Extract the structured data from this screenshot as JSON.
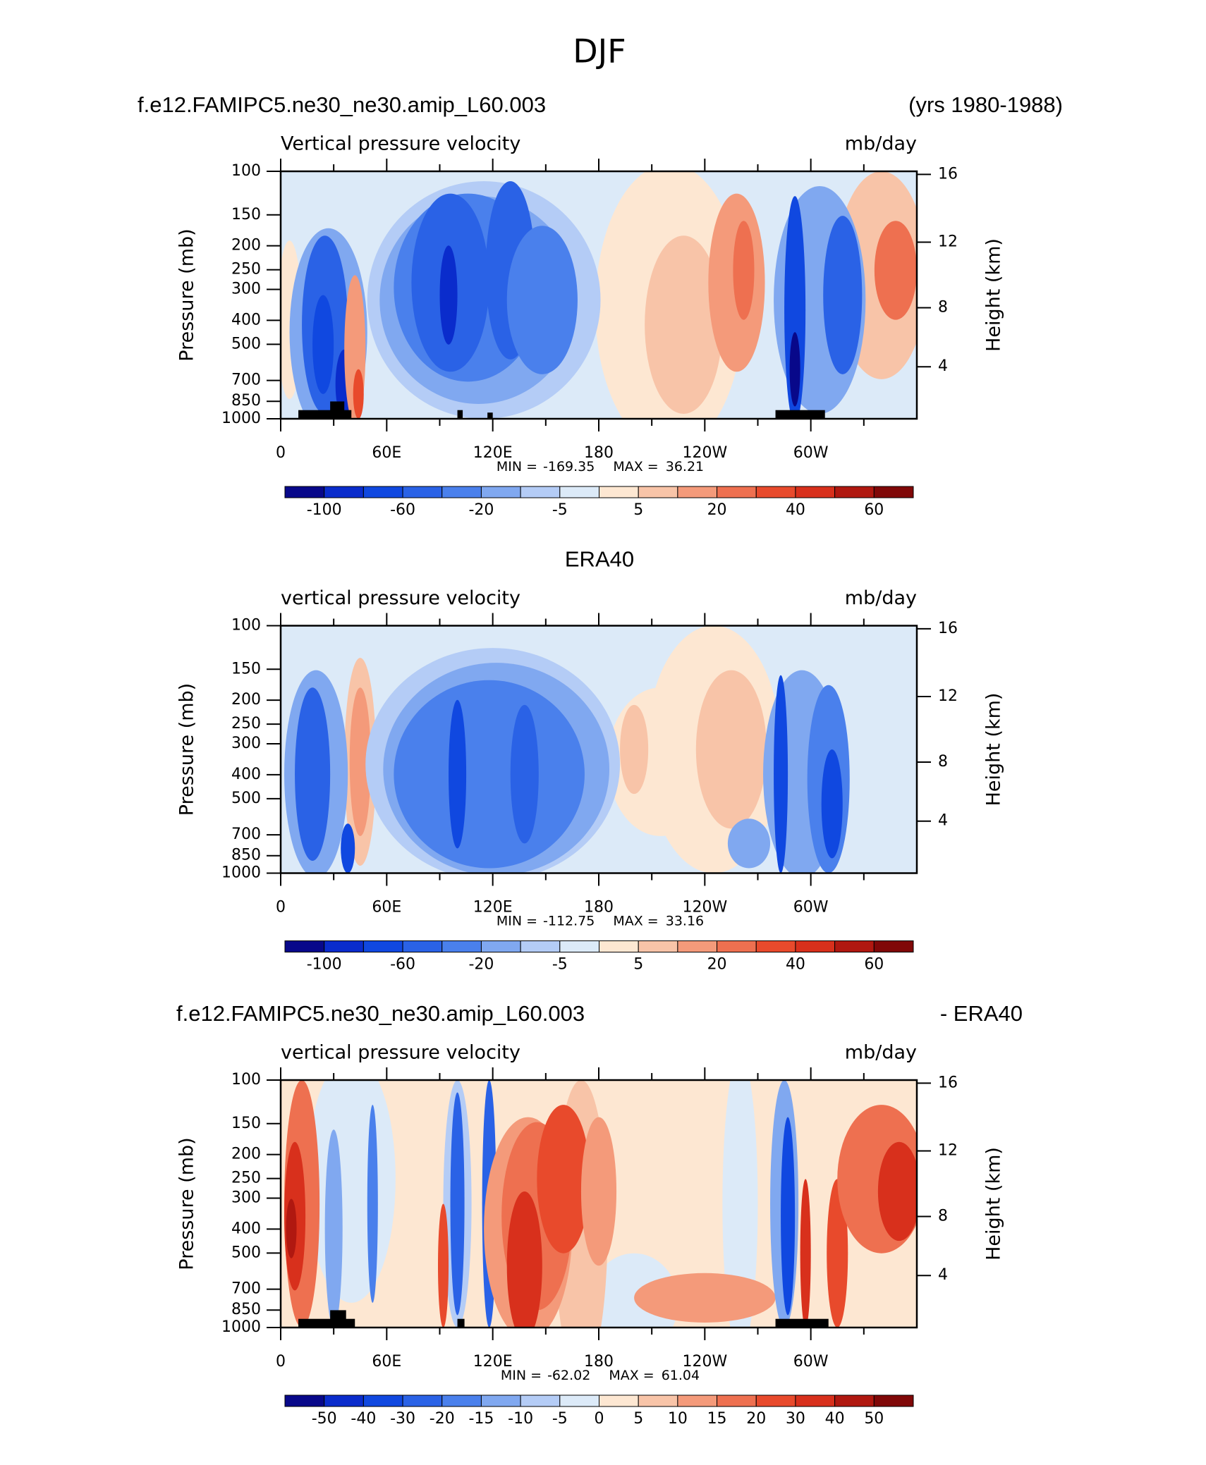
{
  "title": "DJF",
  "chart_data": [
    {
      "type": "contour",
      "title_left": "f.e12.FAMIPC5.ne30_ne30.amip_L60.003",
      "title_right": "(yrs 1980-1988)",
      "subtitle_left": "Vertical pressure velocity",
      "subtitle_right": "mb/day",
      "ylabel": "Pressure (mb)",
      "y2label": "Height (km)",
      "yscale": "log",
      "ylim": [
        1000,
        100
      ],
      "yticks": [
        100,
        150,
        200,
        250,
        300,
        400,
        500,
        700,
        850,
        1000
      ],
      "y2ticks": [
        4,
        8,
        12,
        16
      ],
      "xlim": [
        0,
        360
      ],
      "xticks": [
        0,
        {
          "value": 60,
          "label": "60E"
        },
        {
          "value": 120,
          "label": "120E"
        },
        180,
        {
          "value": 240,
          "label": "120W"
        },
        {
          "value": 300,
          "label": "60W"
        }
      ],
      "min_label": "MIN =",
      "min": -169.35,
      "max_label": "MAX =",
      "max": 36.21,
      "colorbar": {
        "labels": [
          -100,
          -60,
          -20,
          -5,
          5,
          20,
          40,
          60
        ],
        "colors": [
          "#08088a",
          "#0a2ccc",
          "#1048e0",
          "#2a62e6",
          "#4a80ec",
          "#80a8f0",
          "#b4ccf6",
          "#dceaf8",
          "#fde7d2",
          "#f8c4a8",
          "#f49a7a",
          "#ee7050",
          "#e84a2c",
          "#d8301c",
          "#b01810",
          "#800808"
        ]
      }
    },
    {
      "type": "contour",
      "title": "ERA40",
      "subtitle_left": "vertical pressure velocity",
      "subtitle_right": "mb/day",
      "ylabel": "Pressure (mb)",
      "y2label": "Height (km)",
      "yscale": "log",
      "ylim": [
        1000,
        100
      ],
      "yticks": [
        100,
        150,
        200,
        250,
        300,
        400,
        500,
        700,
        850,
        1000
      ],
      "y2ticks": [
        4,
        8,
        12,
        16
      ],
      "xlim": [
        0,
        360
      ],
      "xticks": [
        0,
        {
          "value": 60,
          "label": "60E"
        },
        {
          "value": 120,
          "label": "120E"
        },
        180,
        {
          "value": 240,
          "label": "120W"
        },
        {
          "value": 300,
          "label": "60W"
        }
      ],
      "min_label": "MIN =",
      "min": -112.75,
      "max_label": "MAX =",
      "max": 33.16,
      "colorbar": {
        "labels": [
          -100,
          -60,
          -20,
          -5,
          5,
          20,
          40,
          60
        ],
        "colors": [
          "#08088a",
          "#0a2ccc",
          "#1048e0",
          "#2a62e6",
          "#4a80ec",
          "#80a8f0",
          "#b4ccf6",
          "#dceaf8",
          "#fde7d2",
          "#f8c4a8",
          "#f49a7a",
          "#ee7050",
          "#e84a2c",
          "#d8301c",
          "#b01810",
          "#800808"
        ]
      }
    },
    {
      "type": "contour",
      "title_left": "f.e12.FAMIPC5.ne30_ne30.amip_L60.003",
      "title_right": "- ERA40",
      "subtitle_left": "vertical pressure velocity",
      "subtitle_right": "mb/day",
      "ylabel": "Pressure (mb)",
      "y2label": "Height (km)",
      "yscale": "log",
      "ylim": [
        1000,
        100
      ],
      "yticks": [
        100,
        150,
        200,
        250,
        300,
        400,
        500,
        700,
        850,
        1000
      ],
      "y2ticks": [
        4,
        8,
        12,
        16
      ],
      "xlim": [
        0,
        360
      ],
      "xticks": [
        0,
        {
          "value": 60,
          "label": "60E"
        },
        {
          "value": 120,
          "label": "120E"
        },
        180,
        {
          "value": 240,
          "label": "120W"
        },
        {
          "value": 300,
          "label": "60W"
        }
      ],
      "min_label": "MIN =",
      "min": -62.02,
      "max_label": "MAX =",
      "max": 61.04,
      "colorbar": {
        "labels": [
          -50,
          -40,
          -30,
          -20,
          -15,
          -10,
          -5,
          0,
          5,
          10,
          15,
          20,
          30,
          40,
          50
        ],
        "colors": [
          "#08088a",
          "#0a2ccc",
          "#1048e0",
          "#2a62e6",
          "#4a80ec",
          "#80a8f0",
          "#b4ccf6",
          "#dceaf8",
          "#fde7d2",
          "#f8c4a8",
          "#f49a7a",
          "#ee7050",
          "#e84a2c",
          "#d8301c",
          "#b01810",
          "#800808"
        ]
      }
    }
  ]
}
